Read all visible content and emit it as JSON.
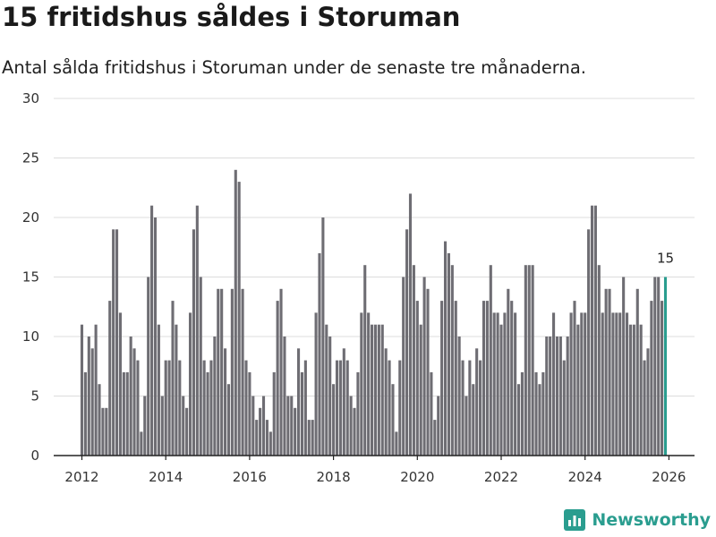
{
  "header": {
    "title": "15 fritidshus såldes i Storuman",
    "subtitle": "Antal sålda fritidshus i Storuman under de senaste tre månaderna."
  },
  "brand": {
    "name": "Newsworthy"
  },
  "colors": {
    "bar": "#6e6d73",
    "highlight": "#2a9d8f",
    "grid": "#dcdcdc"
  },
  "chart_data": {
    "type": "bar",
    "title": "15 fritidshus såldes i Storuman",
    "subtitle": "Antal sålda fritidshus i Storuman under de senaste tre månaderna.",
    "xlabel": "",
    "ylabel": "",
    "ylim": [
      0,
      30
    ],
    "yticks": [
      0,
      5,
      10,
      15,
      20,
      25,
      30
    ],
    "xticks": [
      "2012",
      "2014",
      "2016",
      "2018",
      "2020",
      "2022",
      "2024",
      "2026"
    ],
    "x_start": "2012-01",
    "frequency": "monthly",
    "grid": true,
    "highlight_label": "15",
    "values": [
      11,
      7,
      10,
      9,
      11,
      6,
      4,
      4,
      13,
      19,
      19,
      12,
      7,
      7,
      10,
      9,
      8,
      2,
      5,
      15,
      21,
      20,
      11,
      5,
      8,
      8,
      13,
      11,
      8,
      5,
      4,
      12,
      19,
      21,
      15,
      8,
      7,
      8,
      10,
      14,
      14,
      9,
      6,
      14,
      24,
      23,
      14,
      8,
      7,
      5,
      3,
      4,
      5,
      3,
      2,
      7,
      13,
      14,
      10,
      5,
      5,
      4,
      9,
      7,
      8,
      3,
      3,
      12,
      17,
      20,
      11,
      10,
      6,
      8,
      8,
      9,
      8,
      5,
      4,
      7,
      12,
      16,
      12,
      11,
      11,
      11,
      11,
      9,
      8,
      6,
      2,
      8,
      15,
      19,
      22,
      16,
      13,
      11,
      15,
      14,
      7,
      3,
      5,
      13,
      18,
      17,
      16,
      13,
      10,
      8,
      5,
      8,
      6,
      9,
      8,
      13,
      13,
      16,
      12,
      12,
      11,
      12,
      14,
      13,
      12,
      6,
      7,
      16,
      16,
      16,
      7,
      6,
      7,
      10,
      10,
      12,
      10,
      10,
      8,
      10,
      12,
      13,
      11,
      12,
      12,
      19,
      21,
      21,
      16,
      12,
      14,
      14,
      12,
      12,
      12,
      15,
      12,
      11,
      11,
      14,
      11,
      8,
      9,
      13,
      15,
      15,
      13,
      15
    ]
  }
}
